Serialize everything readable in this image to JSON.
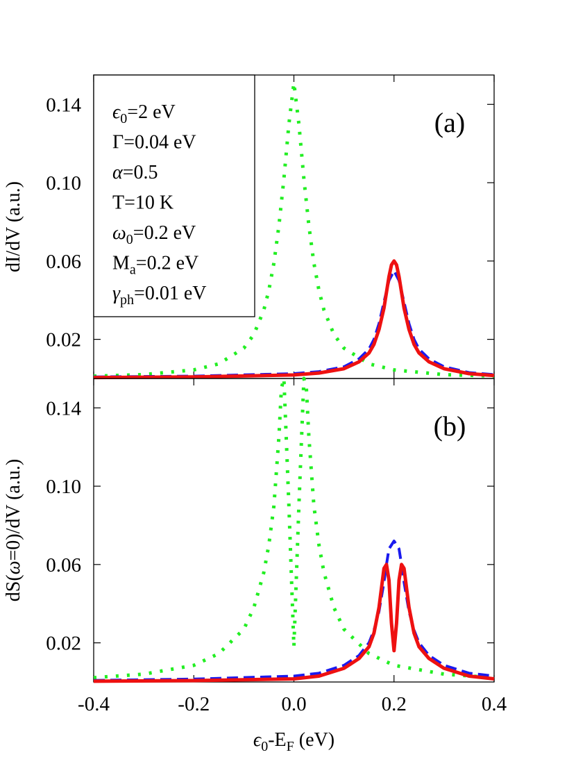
{
  "chart_data": {
    "type": "line",
    "xlabel": {
      "base": "ϵ",
      "sub1": "0",
      "mid": "-E",
      "sub2": "F",
      "tail": " (eV)"
    },
    "xlim": [
      -0.4,
      0.4
    ],
    "xticks": [
      "-0.4",
      "-0.2",
      "0.0",
      "0.2",
      "0.4"
    ],
    "xtick_values": [
      -0.4,
      -0.2,
      0.0,
      0.2,
      0.4
    ],
    "colors": {
      "dotted": "#22ee22",
      "dashed": "#1a1aee",
      "solid": "#ee1111"
    },
    "parameters": [
      {
        "base": "ϵ",
        "sub": "0",
        "tail": "=2 eV"
      },
      {
        "base": "Γ",
        "sub": "",
        "tail": "=0.04 eV"
      },
      {
        "base": "α",
        "sub": "",
        "tail": "=0.5"
      },
      {
        "base": "T",
        "sub": "",
        "tail": "=10 K"
      },
      {
        "base": "ω",
        "sub": "0",
        "tail": "=0.2 eV"
      },
      {
        "base": "M",
        "sub": "a",
        "tail": "=0.2 eV"
      },
      {
        "base": "γ",
        "sub": "ph",
        "tail": "=0.01 eV"
      }
    ],
    "panels": [
      {
        "label": "(a)",
        "ylabel": "dI/dV (a.u.)",
        "ylim": [
          0.0,
          0.155
        ],
        "yticks": [
          "0.02",
          "0.06",
          "0.10",
          "0.14"
        ],
        "ytick_values": [
          0.02,
          0.06,
          0.1,
          0.14
        ],
        "series": [
          {
            "style": "dotted",
            "x": [
              -0.4,
              -0.3,
              -0.2,
              -0.15,
              -0.1,
              -0.08,
              -0.06,
              -0.05,
              -0.04,
              -0.03,
              -0.02,
              -0.01,
              0.0,
              0.01,
              0.02,
              0.03,
              0.04,
              0.05,
              0.06,
              0.08,
              0.1,
              0.15,
              0.2,
              0.3,
              0.4
            ],
            "y": [
              0.0012,
              0.002,
              0.0044,
              0.0075,
              0.0155,
              0.0225,
              0.035,
              0.045,
              0.059,
              0.078,
              0.102,
              0.13,
              0.151,
              0.13,
              0.102,
              0.078,
              0.059,
              0.045,
              0.035,
              0.0225,
              0.0155,
              0.0075,
              0.0044,
              0.002,
              0.0012
            ]
          },
          {
            "style": "dashed",
            "x": [
              -0.4,
              -0.2,
              0.0,
              0.05,
              0.1,
              0.13,
              0.15,
              0.16,
              0.17,
              0.18,
              0.19,
              0.2,
              0.21,
              0.22,
              0.23,
              0.24,
              0.25,
              0.27,
              0.3,
              0.35,
              0.4
            ],
            "y": [
              0.0008,
              0.0012,
              0.0025,
              0.0035,
              0.006,
              0.01,
              0.015,
              0.02,
              0.028,
              0.039,
              0.05,
              0.055,
              0.05,
              0.039,
              0.028,
              0.02,
              0.015,
              0.01,
              0.006,
              0.003,
              0.002
            ]
          },
          {
            "style": "solid",
            "x": [
              -0.4,
              -0.2,
              0.0,
              0.05,
              0.1,
              0.13,
              0.15,
              0.16,
              0.17,
              0.18,
              0.185,
              0.19,
              0.195,
              0.2,
              0.205,
              0.21,
              0.215,
              0.22,
              0.23,
              0.24,
              0.25,
              0.27,
              0.3,
              0.35,
              0.4
            ],
            "y": [
              0.0005,
              0.0008,
              0.0018,
              0.0028,
              0.005,
              0.0085,
              0.013,
              0.0175,
              0.025,
              0.036,
              0.044,
              0.052,
              0.058,
              0.06,
              0.058,
              0.052,
              0.044,
              0.036,
              0.025,
              0.0175,
              0.013,
              0.0085,
              0.005,
              0.0025,
              0.0015
            ]
          }
        ]
      },
      {
        "label": "(b)",
        "ylabel": {
          "pre": "dS(",
          "greek": "ω",
          "post": "=0)/dV (a.u.)"
        },
        "ylim": [
          0.0,
          0.155
        ],
        "yticks": [
          "0.02",
          "0.06",
          "0.10",
          "0.14"
        ],
        "ytick_values": [
          0.02,
          0.06,
          0.1,
          0.14
        ],
        "series": [
          {
            "style": "dotted",
            "x": [
              -0.4,
              -0.3,
              -0.2,
              -0.15,
              -0.1,
              -0.08,
              -0.06,
              -0.05,
              -0.04,
              -0.03,
              -0.025,
              -0.02,
              -0.01,
              0.0,
              0.01,
              0.02,
              0.025,
              0.03,
              0.04,
              0.05,
              0.06,
              0.08,
              0.1,
              0.15,
              0.2,
              0.3,
              0.4
            ],
            "y": [
              0.0022,
              0.004,
              0.0085,
              0.0145,
              0.027,
              0.038,
              0.056,
              0.07,
              0.09,
              0.125,
              0.15,
              0.155,
              0.09,
              0.018,
              0.09,
              0.155,
              0.15,
              0.125,
              0.09,
              0.07,
              0.056,
              0.038,
              0.027,
              0.0145,
              0.0085,
              0.004,
              0.0022
            ]
          },
          {
            "style": "dashed",
            "x": [
              -0.4,
              -0.2,
              0.0,
              0.05,
              0.1,
              0.13,
              0.15,
              0.16,
              0.17,
              0.18,
              0.185,
              0.19,
              0.2,
              0.21,
              0.215,
              0.22,
              0.23,
              0.24,
              0.25,
              0.27,
              0.3,
              0.35,
              0.4
            ],
            "y": [
              0.0008,
              0.0015,
              0.003,
              0.0045,
              0.0085,
              0.0135,
              0.02,
              0.0265,
              0.036,
              0.051,
              0.06,
              0.068,
              0.072,
              0.068,
              0.06,
              0.051,
              0.036,
              0.0265,
              0.02,
              0.0135,
              0.0085,
              0.0045,
              0.003
            ]
          },
          {
            "style": "solid",
            "x": [
              -0.4,
              -0.2,
              0.0,
              0.05,
              0.1,
              0.13,
              0.15,
              0.16,
              0.17,
              0.175,
              0.18,
              0.185,
              0.19,
              0.195,
              0.2,
              0.205,
              0.21,
              0.215,
              0.22,
              0.225,
              0.23,
              0.24,
              0.25,
              0.27,
              0.3,
              0.35,
              0.4
            ],
            "y": [
              0.0004,
              0.0007,
              0.0016,
              0.003,
              0.007,
              0.012,
              0.018,
              0.025,
              0.038,
              0.048,
              0.058,
              0.06,
              0.052,
              0.03,
              0.016,
              0.03,
              0.052,
              0.06,
              0.058,
              0.048,
              0.038,
              0.025,
              0.018,
              0.012,
              0.007,
              0.003,
              0.0016
            ]
          }
        ]
      }
    ]
  }
}
